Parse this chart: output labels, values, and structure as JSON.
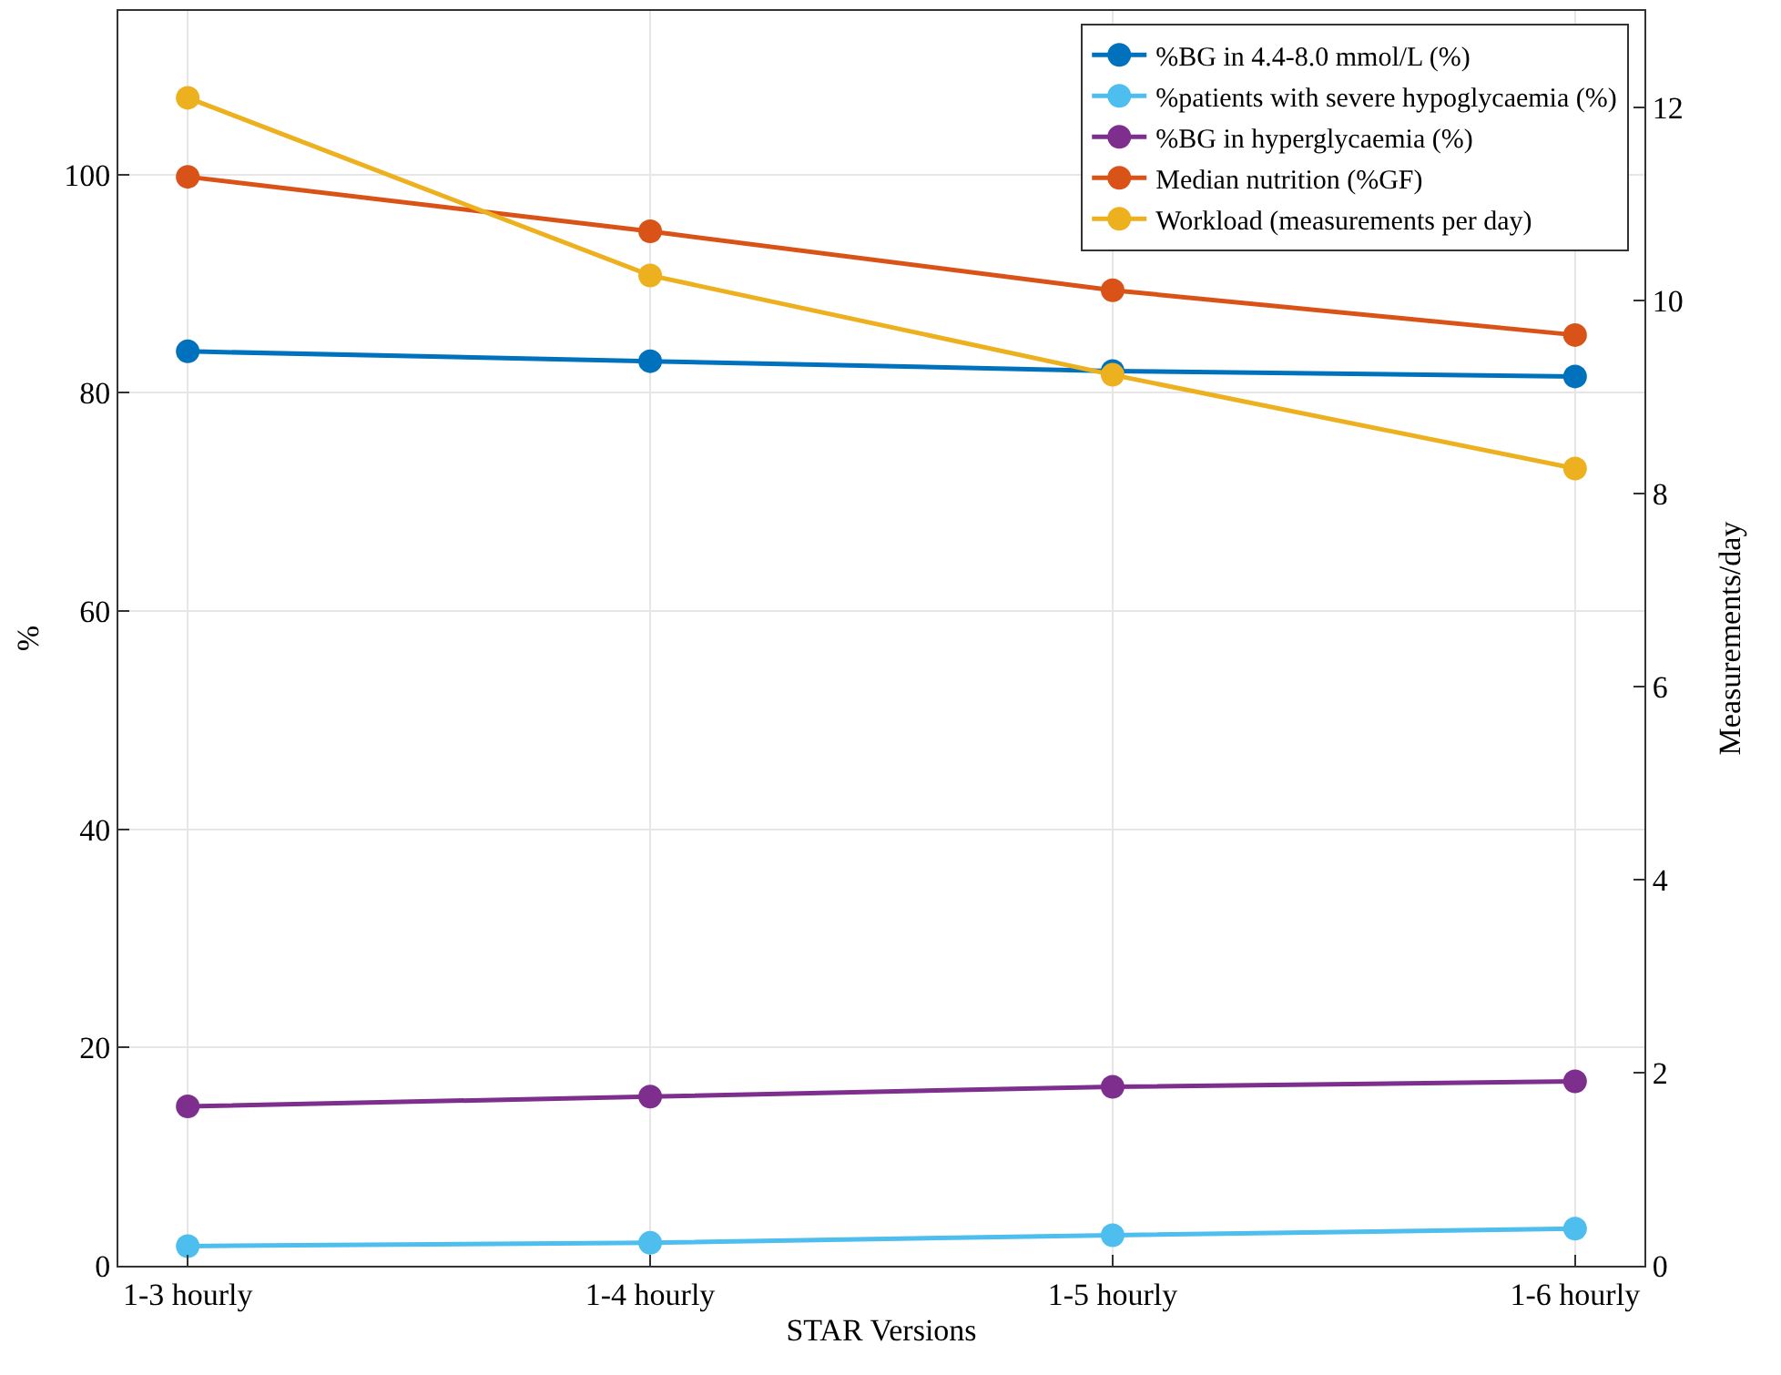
{
  "chart_data": {
    "type": "line",
    "xlabel": "STAR Versions",
    "ylabel": "%",
    "y2label": "Measurements/day",
    "categories": [
      "1-3 hourly",
      "1-4 hourly",
      "1-5 hourly",
      "1-6 hourly"
    ],
    "series": [
      {
        "name": "%BG in 4.4-8.0 mmol/L (%)",
        "color": "#0072bd",
        "values": [
          83.8,
          82.9,
          82.0,
          81.5
        ]
      },
      {
        "name": "%patients with severe hypoglycaemia (%)",
        "color": "#4dbeee",
        "values": [
          1.8,
          2.1,
          2.8,
          3.4
        ]
      },
      {
        "name": "%BG in hyperglycaemia (%)",
        "color": "#7e2f8e",
        "values": [
          14.6,
          15.5,
          16.4,
          16.9
        ]
      },
      {
        "name": "Median nutrition (%GF)",
        "color": "#d95319",
        "values": [
          99.8,
          94.8,
          89.4,
          85.3
        ]
      },
      {
        "name": "Workload (measurements per day)",
        "color": "#edb120",
        "values": [
          12.1,
          10.26,
          9.23,
          8.26
        ],
        "axis": "y2"
      }
    ],
    "ylim": [
      0,
      115
    ],
    "yticks": [
      0,
      20,
      40,
      60,
      80,
      100
    ],
    "y2lim": [
      0,
      13
    ],
    "y2ticks": [
      0,
      2,
      4,
      6,
      8,
      10,
      12
    ],
    "grid": true,
    "legend": "top right",
    "marker": "circle",
    "line_style": "solid"
  }
}
